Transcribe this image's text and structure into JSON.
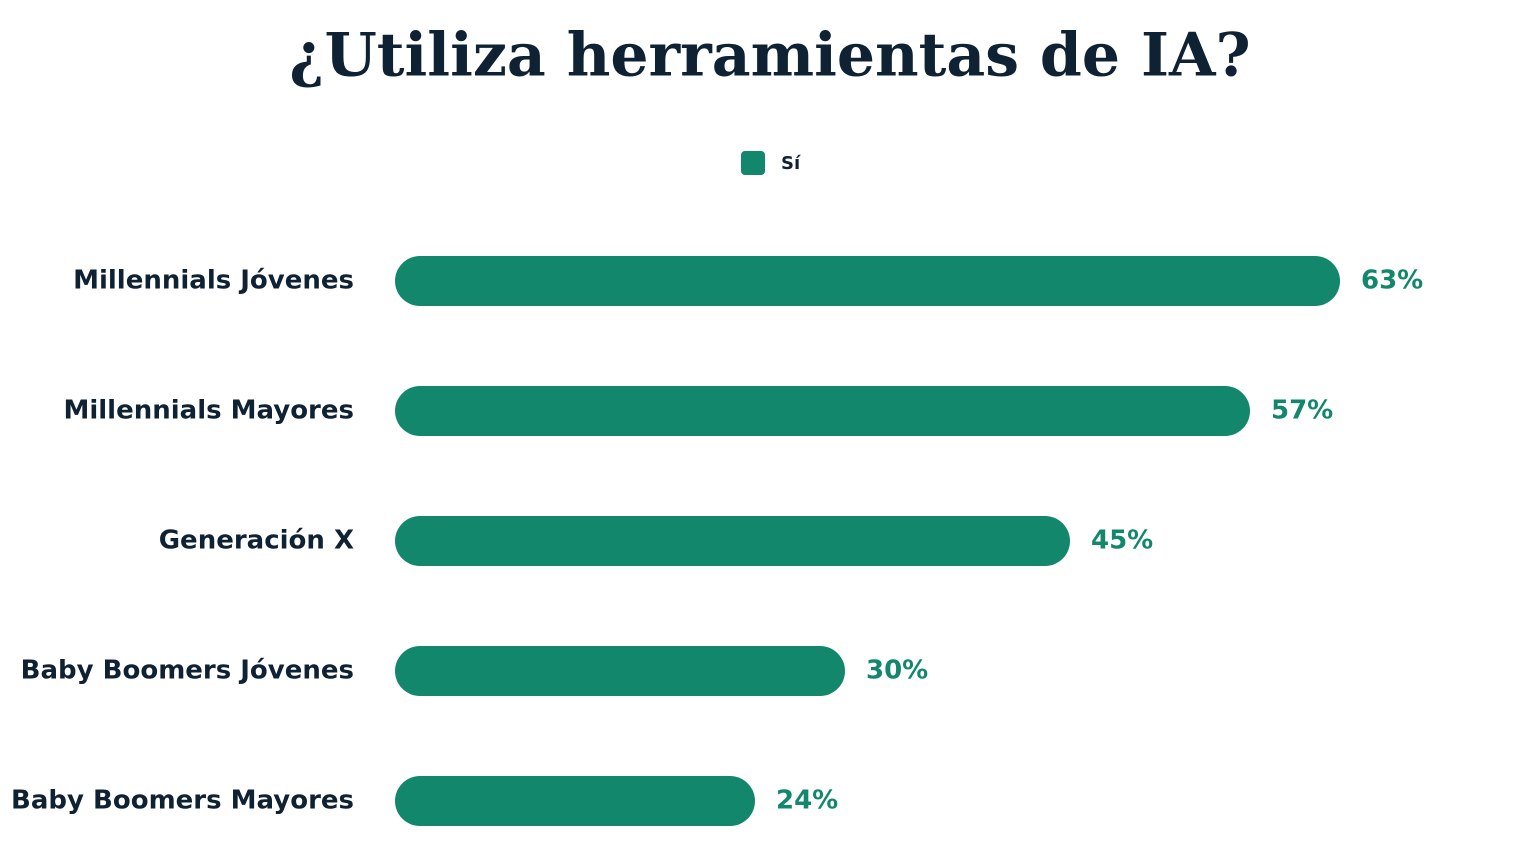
{
  "chart_data": {
    "type": "bar",
    "orientation": "horizontal",
    "title": "¿Utiliza herramientas de IA?",
    "categories": [
      "Millennials Jóvenes",
      "Millennials Mayores",
      "Generación X",
      "Baby Boomers Jóvenes",
      "Baby Boomers Mayores"
    ],
    "series": [
      {
        "name": "Sí",
        "color": "#12876c",
        "values": [
          63,
          57,
          45,
          30,
          24
        ],
        "value_labels": [
          "63%",
          "57%",
          "45%",
          "30%",
          "24%"
        ]
      }
    ],
    "legend": "top"
  }
}
